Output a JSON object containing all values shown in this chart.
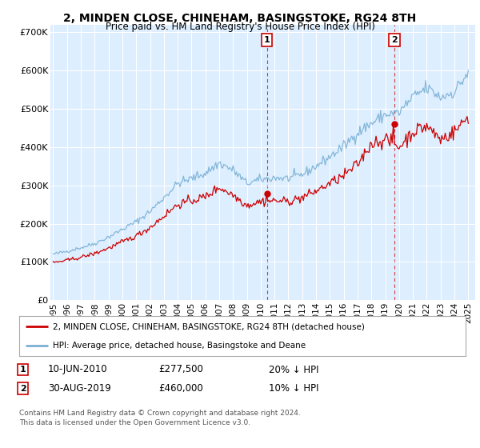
{
  "title": "2, MINDEN CLOSE, CHINEHAM, BASINGSTOKE, RG24 8TH",
  "subtitle": "Price paid vs. HM Land Registry's House Price Index (HPI)",
  "legend_line1": "2, MINDEN CLOSE, CHINEHAM, BASINGSTOKE, RG24 8TH (detached house)",
  "legend_line2": "HPI: Average price, detached house, Basingstoke and Deane",
  "annotation1_date": "10-JUN-2010",
  "annotation1_price": "£277,500",
  "annotation1_hpi": "20% ↓ HPI",
  "annotation2_date": "30-AUG-2019",
  "annotation2_price": "£460,000",
  "annotation2_hpi": "10% ↓ HPI",
  "footer": "Contains HM Land Registry data © Crown copyright and database right 2024.\nThis data is licensed under the Open Government Licence v3.0.",
  "ylim": [
    0,
    720000
  ],
  "yticks": [
    0,
    100000,
    200000,
    300000,
    400000,
    500000,
    600000,
    700000
  ],
  "ytick_labels": [
    "£0",
    "£100K",
    "£200K",
    "£300K",
    "£400K",
    "£500K",
    "£600K",
    "£700K"
  ],
  "hpi_color": "#7ab0d4",
  "price_color": "#cc0000",
  "plot_bg_color": "#ddeeff",
  "sale1_x": 2010.44,
  "sale1_y": 277500,
  "sale2_x": 2019.66,
  "sale2_y": 460000,
  "xmin": 1994.8,
  "xmax": 2025.5
}
